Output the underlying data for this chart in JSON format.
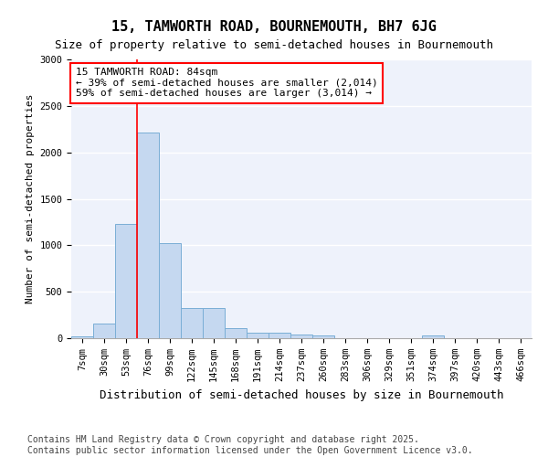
{
  "title": "15, TAMWORTH ROAD, BOURNEMOUTH, BH7 6JG",
  "subtitle": "Size of property relative to semi-detached houses in Bournemouth",
  "xlabel": "Distribution of semi-detached houses by size in Bournemouth",
  "ylabel": "Number of semi-detached properties",
  "categories": [
    "7sqm",
    "30sqm",
    "53sqm",
    "76sqm",
    "99sqm",
    "122sqm",
    "145sqm",
    "168sqm",
    "191sqm",
    "214sqm",
    "237sqm",
    "260sqm",
    "283sqm",
    "306sqm",
    "329sqm",
    "351sqm",
    "374sqm",
    "397sqm",
    "420sqm",
    "443sqm",
    "466sqm"
  ],
  "values": [
    20,
    155,
    1230,
    2210,
    1020,
    320,
    320,
    105,
    60,
    60,
    40,
    30,
    0,
    0,
    0,
    0,
    30,
    0,
    0,
    0,
    0
  ],
  "bar_color": "#c5d8f0",
  "bar_edge_color": "#7aaed6",
  "annotation_line1": "15 TAMWORTH ROAD: 84sqm",
  "annotation_line2": "← 39% of semi-detached houses are smaller (2,014)",
  "annotation_line3": "59% of semi-detached houses are larger (3,014) →",
  "vline_position": 2.5,
  "vline_color": "red",
  "ylim": [
    0,
    3000
  ],
  "yticks": [
    0,
    500,
    1000,
    1500,
    2000,
    2500,
    3000
  ],
  "background_color": "#eef2fb",
  "grid_color": "#ffffff",
  "footer_line1": "Contains HM Land Registry data © Crown copyright and database right 2025.",
  "footer_line2": "Contains public sector information licensed under the Open Government Licence v3.0.",
  "title_fontsize": 11,
  "subtitle_fontsize": 9,
  "annotation_fontsize": 8,
  "ylabel_fontsize": 8,
  "xlabel_fontsize": 9,
  "footer_fontsize": 7,
  "tick_fontsize": 7.5
}
